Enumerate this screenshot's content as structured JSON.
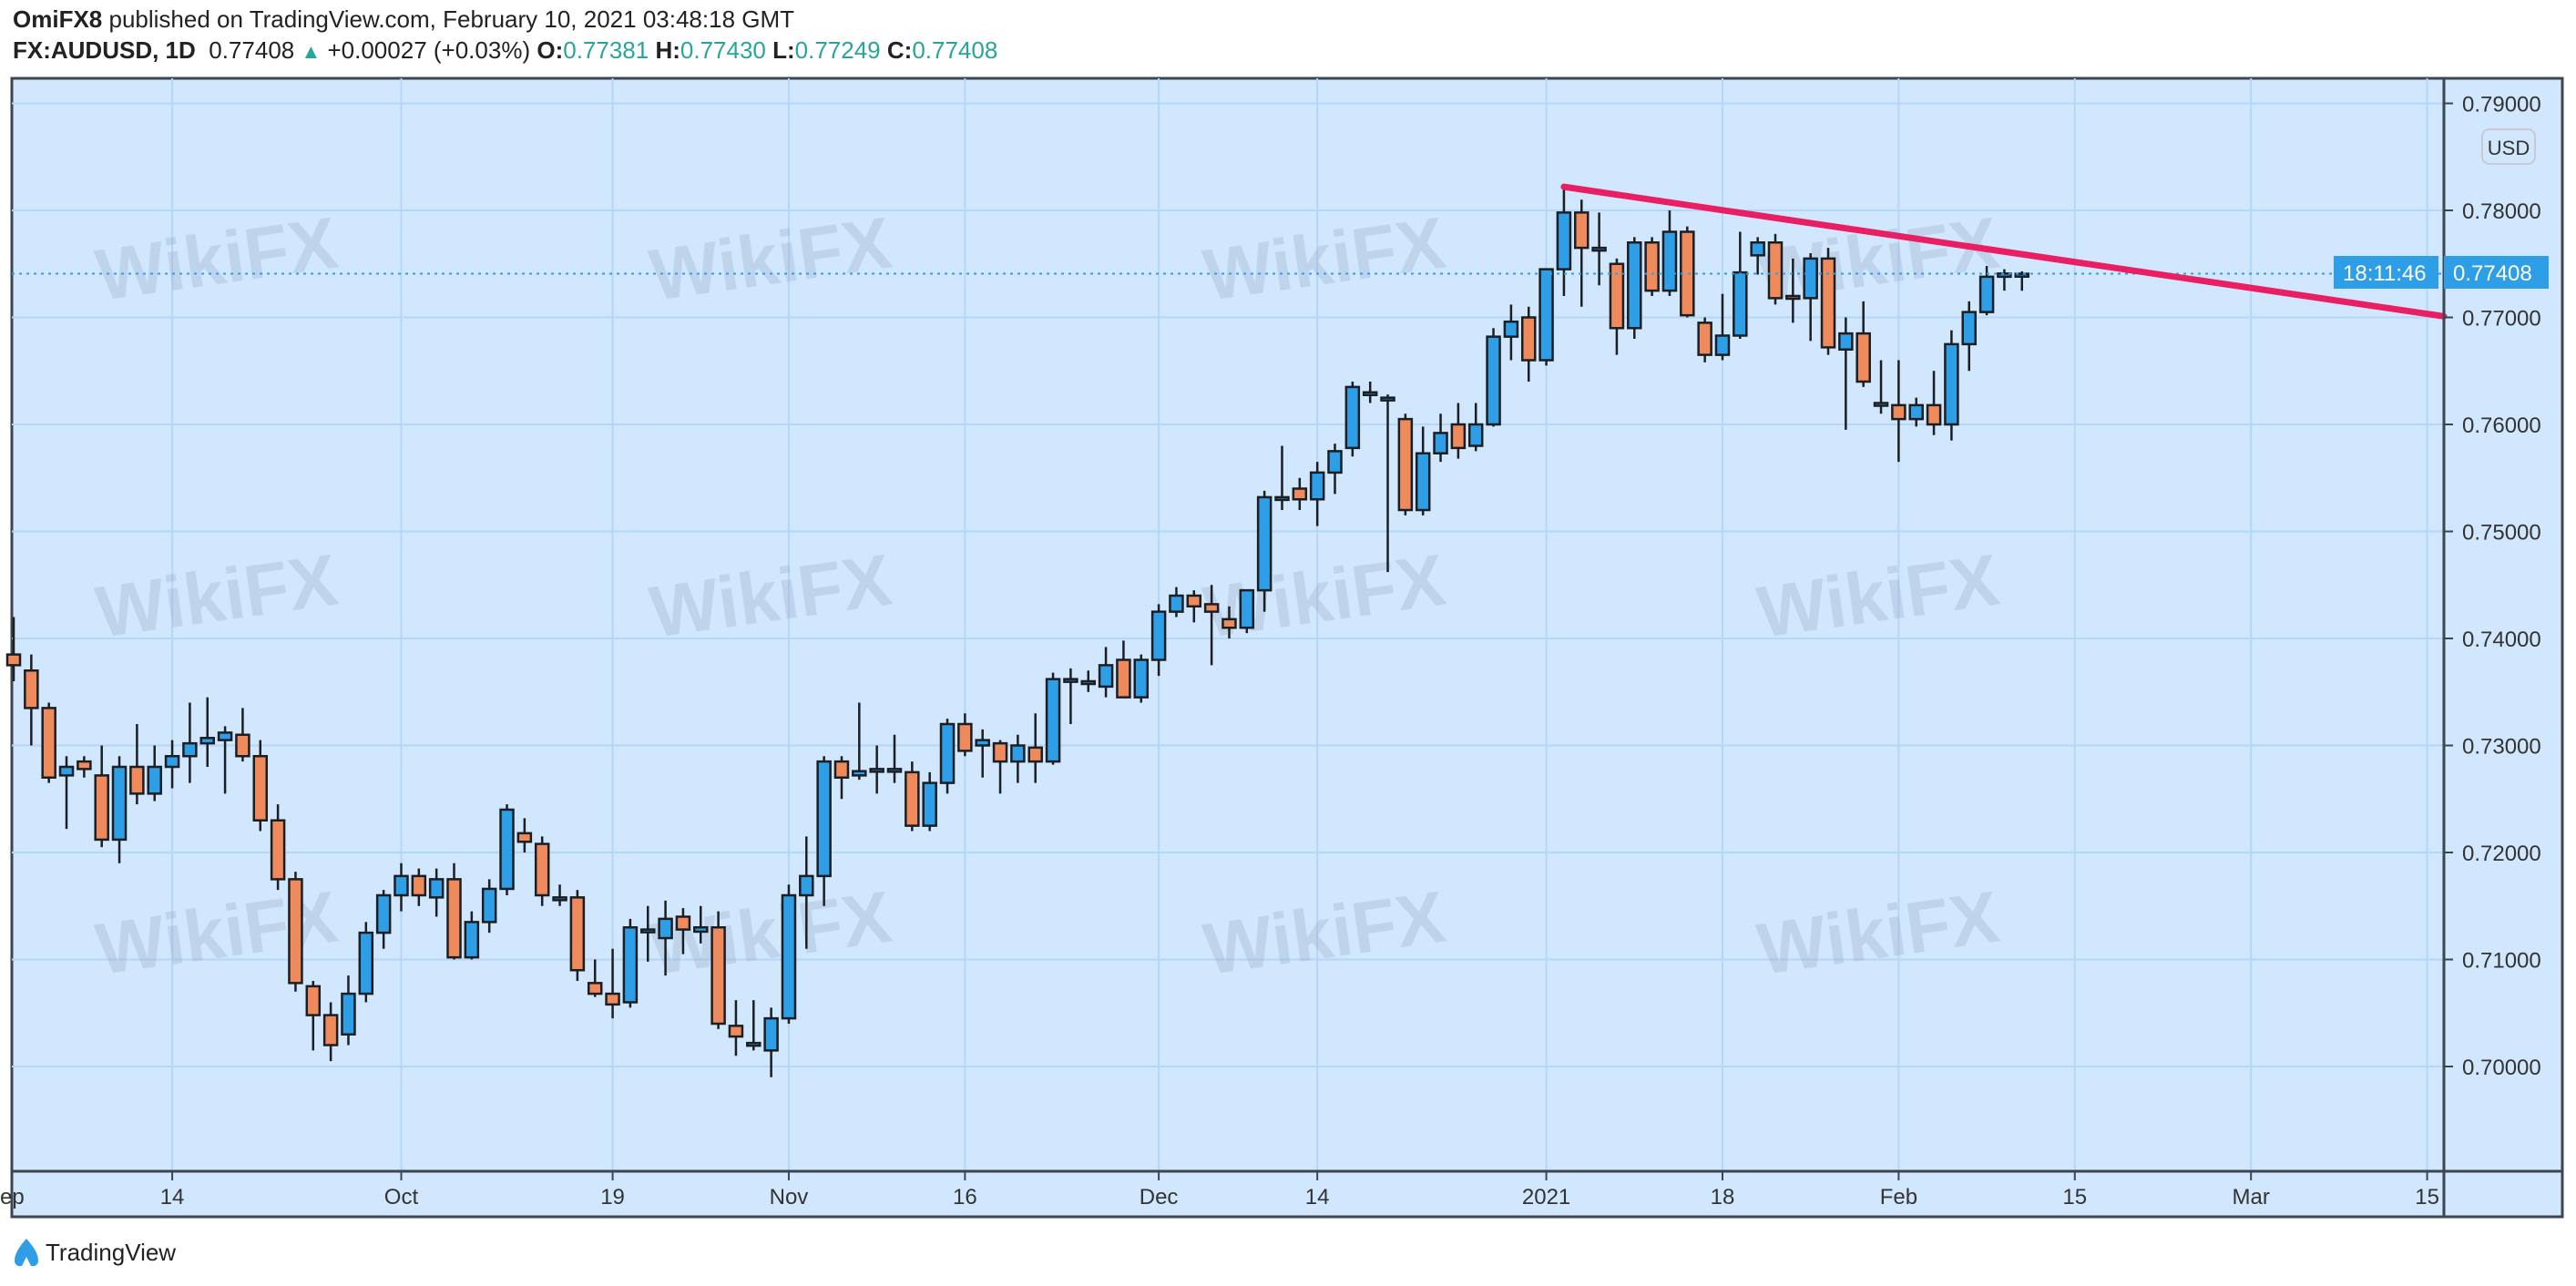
{
  "header": {
    "author": "OmiFX8",
    "published": "published on TradingView.com, February 10, 2021 03:48:18 GMT",
    "symbol": "FX:AUDUSD, 1D",
    "last": "0.77408",
    "change": "+0.00027 (+0.03%)",
    "o_label": "O:",
    "o": "0.77381",
    "h_label": "H:",
    "h": "0.77430",
    "l_label": "L:",
    "l": "0.77249",
    "c_label": "C:",
    "c": "0.77408"
  },
  "currency_badge": "USD",
  "current_price_label": "0.77408",
  "countdown": "18:11:46",
  "footer": {
    "brand": "TradingView"
  },
  "watermark": "WikiFX",
  "colors": {
    "bg": "#d1e7fd",
    "up": "#2e9fe6",
    "down": "#ee8a5c",
    "trend": "#e91e63",
    "grid": "#b5d6f8",
    "label": "#2e9fe6"
  },
  "chart_data": {
    "type": "candlestick",
    "title": "FX:AUDUSD, 1D",
    "ylabel": "USD",
    "ylim": [
      0.6935,
      0.7915
    ],
    "yticks": [
      "0.79000",
      "0.78000",
      "0.77000",
      "0.76000",
      "0.75000",
      "0.74000",
      "0.73000",
      "0.72000",
      "0.71000",
      "0.70000"
    ],
    "xticks": [
      {
        "label": "Sep",
        "index": -0.5
      },
      {
        "label": "14",
        "index": 9
      },
      {
        "label": "Oct",
        "index": 22
      },
      {
        "label": "19",
        "index": 34
      },
      {
        "label": "Nov",
        "index": 44
      },
      {
        "label": "16",
        "index": 54
      },
      {
        "label": "Dec",
        "index": 65
      },
      {
        "label": "14",
        "index": 74
      },
      {
        "label": "2021",
        "index": 87
      },
      {
        "label": "18",
        "index": 97
      },
      {
        "label": "Feb",
        "index": 107
      },
      {
        "label": "15",
        "index": 117
      },
      {
        "label": "Mar",
        "index": 127
      },
      {
        "label": "15",
        "index": 137
      }
    ],
    "current_price": 0.77408,
    "trendline": {
      "from": [
        88,
        0.7822
      ],
      "to": [
        138,
        0.7701
      ]
    },
    "ohlc": [
      [
        0.7385,
        0.742,
        0.736,
        0.7375
      ],
      [
        0.737,
        0.7385,
        0.73,
        0.7335
      ],
      [
        0.7335,
        0.734,
        0.7265,
        0.727
      ],
      [
        0.7272,
        0.729,
        0.7222,
        0.728
      ],
      [
        0.7285,
        0.729,
        0.727,
        0.7278
      ],
      [
        0.7272,
        0.73,
        0.7205,
        0.7212
      ],
      [
        0.7212,
        0.729,
        0.719,
        0.728
      ],
      [
        0.728,
        0.732,
        0.7245,
        0.7255
      ],
      [
        0.7255,
        0.73,
        0.7248,
        0.728
      ],
      [
        0.728,
        0.7305,
        0.726,
        0.729
      ],
      [
        0.729,
        0.734,
        0.7265,
        0.7302
      ],
      [
        0.7302,
        0.7345,
        0.728,
        0.7307
      ],
      [
        0.7305,
        0.7318,
        0.7255,
        0.7312
      ],
      [
        0.731,
        0.7335,
        0.7285,
        0.729
      ],
      [
        0.729,
        0.7305,
        0.722,
        0.723
      ],
      [
        0.723,
        0.7245,
        0.7165,
        0.7175
      ],
      [
        0.7175,
        0.7182,
        0.707,
        0.7078
      ],
      [
        0.7075,
        0.708,
        0.7015,
        0.7048
      ],
      [
        0.7048,
        0.706,
        0.7005,
        0.702
      ],
      [
        0.703,
        0.7085,
        0.702,
        0.7068
      ],
      [
        0.7068,
        0.7135,
        0.706,
        0.7125
      ],
      [
        0.7125,
        0.7165,
        0.711,
        0.716
      ],
      [
        0.716,
        0.719,
        0.7145,
        0.7178
      ],
      [
        0.7178,
        0.7185,
        0.715,
        0.716
      ],
      [
        0.7158,
        0.7185,
        0.714,
        0.7175
      ],
      [
        0.7175,
        0.719,
        0.71,
        0.7102
      ],
      [
        0.7102,
        0.7145,
        0.71,
        0.7135
      ],
      [
        0.7135,
        0.7175,
        0.7125,
        0.7166
      ],
      [
        0.7166,
        0.7245,
        0.716,
        0.724
      ],
      [
        0.7218,
        0.7232,
        0.72,
        0.721
      ],
      [
        0.7208,
        0.7215,
        0.715,
        0.716
      ],
      [
        0.7158,
        0.717,
        0.715,
        0.7158
      ],
      [
        0.7158,
        0.7165,
        0.708,
        0.709
      ],
      [
        0.7078,
        0.71,
        0.7065,
        0.7068
      ],
      [
        0.7068,
        0.711,
        0.7045,
        0.7058
      ],
      [
        0.706,
        0.7138,
        0.7055,
        0.713
      ],
      [
        0.7128,
        0.715,
        0.7098,
        0.7128
      ],
      [
        0.712,
        0.7155,
        0.7085,
        0.7138
      ],
      [
        0.714,
        0.7148,
        0.7105,
        0.7128
      ],
      [
        0.7126,
        0.715,
        0.7115,
        0.713
      ],
      [
        0.713,
        0.7145,
        0.7035,
        0.704
      ],
      [
        0.7038,
        0.7062,
        0.701,
        0.7028
      ],
      [
        0.7022,
        0.7062,
        0.7015,
        0.7022
      ],
      [
        0.7015,
        0.7055,
        0.699,
        0.7045
      ],
      [
        0.7045,
        0.717,
        0.704,
        0.716
      ],
      [
        0.716,
        0.7215,
        0.711,
        0.7178
      ],
      [
        0.7178,
        0.729,
        0.715,
        0.7285
      ],
      [
        0.7285,
        0.729,
        0.725,
        0.727
      ],
      [
        0.7272,
        0.734,
        0.7268,
        0.7276
      ],
      [
        0.7276,
        0.73,
        0.7255,
        0.7278
      ],
      [
        0.7278,
        0.731,
        0.7265,
        0.7278
      ],
      [
        0.7275,
        0.7285,
        0.722,
        0.7225
      ],
      [
        0.7225,
        0.7275,
        0.722,
        0.7265
      ],
      [
        0.7265,
        0.7325,
        0.7255,
        0.732
      ],
      [
        0.732,
        0.733,
        0.729,
        0.7295
      ],
      [
        0.73,
        0.7315,
        0.727,
        0.7305
      ],
      [
        0.7302,
        0.7305,
        0.7255,
        0.7285
      ],
      [
        0.7285,
        0.731,
        0.7265,
        0.73
      ],
      [
        0.7298,
        0.733,
        0.7265,
        0.7285
      ],
      [
        0.7285,
        0.7368,
        0.7282,
        0.7362
      ],
      [
        0.7362,
        0.7372,
        0.732,
        0.7362
      ],
      [
        0.736,
        0.737,
        0.735,
        0.736
      ],
      [
        0.7355,
        0.7392,
        0.7345,
        0.7375
      ],
      [
        0.738,
        0.7398,
        0.7345,
        0.7345
      ],
      [
        0.7345,
        0.7385,
        0.734,
        0.738
      ],
      [
        0.738,
        0.7432,
        0.7365,
        0.7425
      ],
      [
        0.7425,
        0.7448,
        0.742,
        0.744
      ],
      [
        0.744,
        0.7445,
        0.7415,
        0.743
      ],
      [
        0.7432,
        0.745,
        0.7375,
        0.7425
      ],
      [
        0.7418,
        0.743,
        0.74,
        0.741
      ],
      [
        0.741,
        0.7445,
        0.7405,
        0.7445
      ],
      [
        0.7445,
        0.7538,
        0.7425,
        0.7532
      ],
      [
        0.7532,
        0.758,
        0.752,
        0.7532
      ],
      [
        0.754,
        0.755,
        0.752,
        0.753
      ],
      [
        0.753,
        0.7565,
        0.7505,
        0.7555
      ],
      [
        0.7555,
        0.7582,
        0.7535,
        0.7575
      ],
      [
        0.7578,
        0.764,
        0.757,
        0.7635
      ],
      [
        0.7628,
        0.764,
        0.762,
        0.763
      ],
      [
        0.7625,
        0.7628,
        0.7462,
        0.7625
      ],
      [
        0.7605,
        0.761,
        0.7515,
        0.752
      ],
      [
        0.752,
        0.7598,
        0.7515,
        0.7573
      ],
      [
        0.7573,
        0.761,
        0.7565,
        0.7592
      ],
      [
        0.76,
        0.762,
        0.7568,
        0.7578
      ],
      [
        0.758,
        0.762,
        0.7575,
        0.76
      ],
      [
        0.76,
        0.769,
        0.7598,
        0.7682
      ],
      [
        0.7682,
        0.7712,
        0.766,
        0.7696
      ],
      [
        0.77,
        0.771,
        0.764,
        0.766
      ],
      [
        0.766,
        0.7745,
        0.7655,
        0.7745
      ],
      [
        0.7745,
        0.7822,
        0.772,
        0.7798
      ],
      [
        0.7798,
        0.781,
        0.771,
        0.7765
      ],
      [
        0.7765,
        0.7798,
        0.773,
        0.7765
      ],
      [
        0.775,
        0.7755,
        0.7665,
        0.769
      ],
      [
        0.769,
        0.7775,
        0.768,
        0.777
      ],
      [
        0.777,
        0.7775,
        0.772,
        0.7725
      ],
      [
        0.7725,
        0.78,
        0.772,
        0.778
      ],
      [
        0.778,
        0.7785,
        0.77,
        0.7702
      ],
      [
        0.7695,
        0.77,
        0.7658,
        0.7665
      ],
      [
        0.7665,
        0.7722,
        0.766,
        0.7683
      ],
      [
        0.7683,
        0.778,
        0.768,
        0.7742
      ],
      [
        0.7758,
        0.7775,
        0.774,
        0.777
      ],
      [
        0.777,
        0.7778,
        0.7712,
        0.7718
      ],
      [
        0.772,
        0.7755,
        0.7695,
        0.7718
      ],
      [
        0.7718,
        0.776,
        0.7678,
        0.7755
      ],
      [
        0.7755,
        0.7765,
        0.7665,
        0.7672
      ],
      [
        0.767,
        0.77,
        0.7595,
        0.7685
      ],
      [
        0.7685,
        0.7715,
        0.7635,
        0.764
      ],
      [
        0.762,
        0.766,
        0.761,
        0.762
      ],
      [
        0.7618,
        0.766,
        0.7565,
        0.7605
      ],
      [
        0.7605,
        0.7625,
        0.7598,
        0.7618
      ],
      [
        0.7618,
        0.765,
        0.759,
        0.76
      ],
      [
        0.76,
        0.7688,
        0.7585,
        0.7675
      ],
      [
        0.7675,
        0.7715,
        0.765,
        0.7705
      ],
      [
        0.7705,
        0.7748,
        0.7702,
        0.7738
      ],
      [
        0.7738,
        0.7745,
        0.7725,
        0.7741
      ],
      [
        0.77381,
        0.7743,
        0.77249,
        0.77408
      ]
    ]
  }
}
